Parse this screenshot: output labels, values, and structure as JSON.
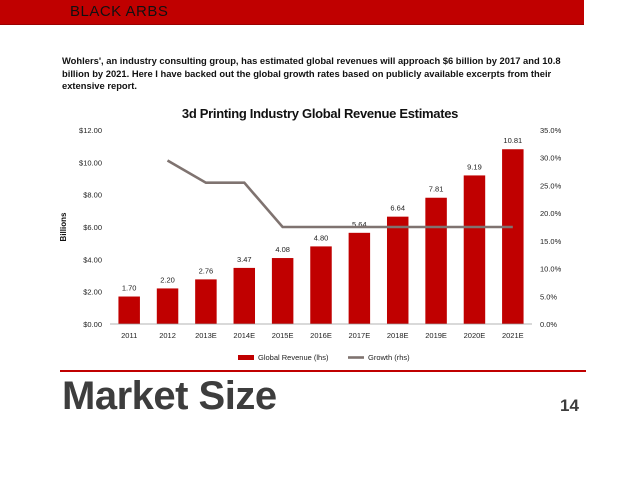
{
  "header": {
    "brand": "BLACK ARBS",
    "bar_color": "#c00000"
  },
  "intro_text": "Wohlers', an industry consulting group, has estimated global revenues will approach $6 billion by 2017 and 10.8 billion by 2021. Here I have backed out the global growth rates based on publicly available excerpts from their extensive report.",
  "slide": {
    "title": "Market Size",
    "page_number": "14"
  },
  "chart_data": {
    "type": "bar",
    "title": "3d Printing Industry Global Revenue Estimates",
    "ylabel": "Billions",
    "categories": [
      "2011",
      "2012",
      "2013E",
      "2014E",
      "2015E",
      "2016E",
      "2017E",
      "2018E",
      "2019E",
      "2020E",
      "2021E"
    ],
    "ylim": [
      0,
      12
    ],
    "yticks": [
      "$0.00",
      "$2.00",
      "$4.00",
      "$6.00",
      "$8.00",
      "$10.00",
      "$12.00"
    ],
    "y2lim": [
      0,
      35
    ],
    "y2ticks": [
      "0.0%",
      "5.0%",
      "10.0%",
      "15.0%",
      "20.0%",
      "25.0%",
      "30.0%",
      "35.0%"
    ],
    "series": [
      {
        "name": "Global Revenue (lhs)",
        "type": "bar",
        "axis": "left",
        "color": "#c00000",
        "values": [
          1.7,
          2.2,
          2.76,
          3.47,
          4.08,
          4.8,
          5.64,
          6.64,
          7.81,
          9.19,
          10.81
        ],
        "labels": [
          "1.70",
          "2.20",
          "2.76",
          "3.47",
          "4.08",
          "4.80",
          "5.64",
          "6.64",
          "7.81",
          "9.19",
          "10.81"
        ]
      },
      {
        "name": "Growth (rhs)",
        "type": "line",
        "axis": "right",
        "color": "#7f7370",
        "values": [
          null,
          29.5,
          25.5,
          25.5,
          17.5,
          17.5,
          17.5,
          17.5,
          17.5,
          17.5,
          17.5
        ]
      }
    ],
    "legend": "bottom",
    "grid": false
  }
}
